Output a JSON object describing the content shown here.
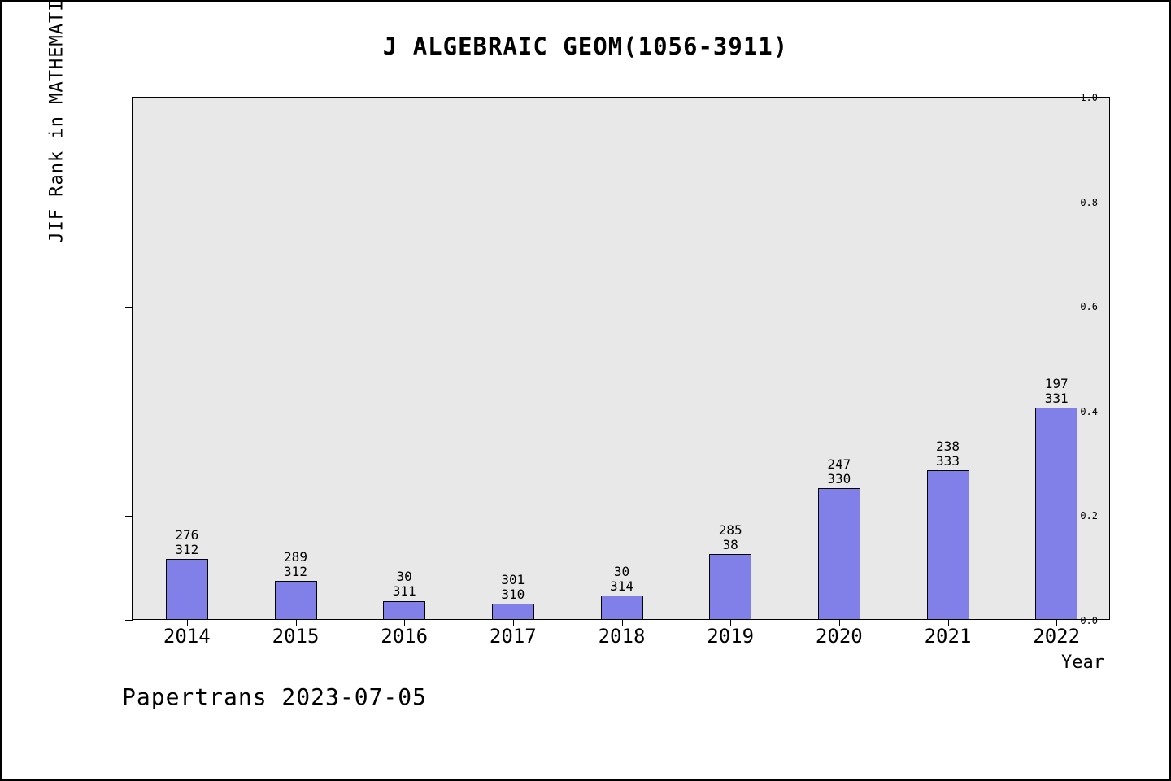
{
  "title": "J ALGEBRAIC GEOM(1056-3911)",
  "footer": "Papertrans 2023-07-05",
  "chart_data": {
    "type": "bar",
    "title": "J ALGEBRAIC GEOM(1056-3911)",
    "xlabel": "Year",
    "ylabel": "JIF Rank in MATHEMATICS",
    "categories": [
      "2014",
      "2015",
      "2016",
      "2017",
      "2018",
      "2019",
      "2020",
      "2021",
      "2022"
    ],
    "values": [
      0.115,
      0.073,
      0.035,
      0.029,
      0.045,
      0.125,
      0.25,
      0.285,
      0.405
    ],
    "bar_labels": [
      [
        "276",
        "312"
      ],
      [
        "289",
        "312"
      ],
      [
        "30",
        "311"
      ],
      [
        "301",
        "310"
      ],
      [
        "30",
        "314"
      ],
      [
        "285",
        "38"
      ],
      [
        "247",
        "330"
      ],
      [
        "238",
        "333"
      ],
      [
        "197",
        "331"
      ]
    ],
    "ylim": [
      0,
      1
    ],
    "yticks": [
      0.0,
      0.2,
      0.4,
      0.6,
      0.8,
      1.0
    ],
    "ytick_labels": [
      "0.0",
      "0.2",
      "0.4",
      "0.6",
      "0.8",
      "1.0"
    ],
    "grid": false,
    "legend_position": "none",
    "bar_color": "#8080e8",
    "bar_border_color": "#000000",
    "plot_background": "#e8e8e8"
  }
}
